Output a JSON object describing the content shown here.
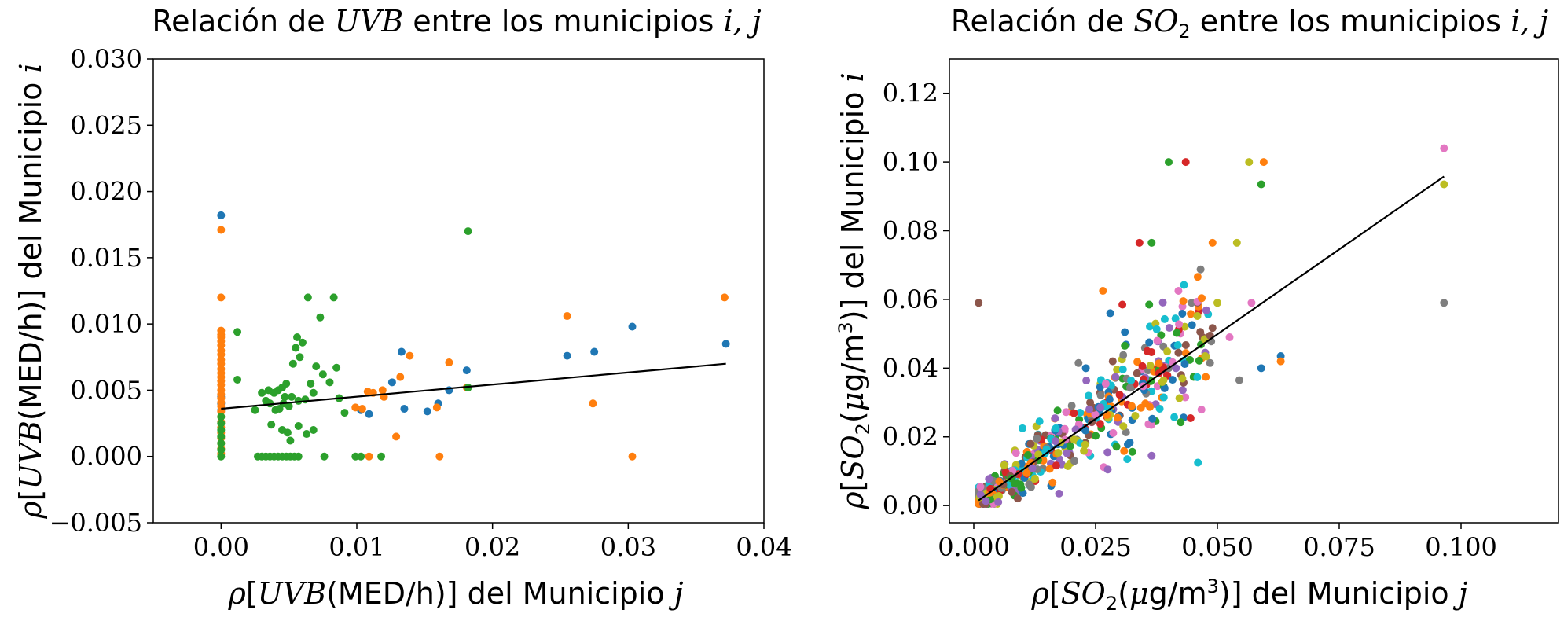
{
  "colors": [
    "#1f77b4",
    "#ff7f0e",
    "#2ca02c",
    "#d62728",
    "#9467bd",
    "#8c564b",
    "#e377c2",
    "#7f7f7f",
    "#bcbd22",
    "#17becf"
  ],
  "chart_data": [
    {
      "type": "scatter",
      "title": "Relación de UVB entre los municipios i, j",
      "xlabel": "ρ[UVB(MED/h)] del Municipio j",
      "ylabel": "ρ[UVB(MED/h)] del Municipio i",
      "xlim": [
        -0.005,
        0.04
      ],
      "ylim": [
        -0.005,
        0.03
      ],
      "xticks": [
        0.0,
        0.01,
        0.02,
        0.03,
        0.04
      ],
      "xtick_labels": [
        "0.00",
        "0.01",
        "0.02",
        "0.03",
        "0.04"
      ],
      "yticks": [
        -0.005,
        0.0,
        0.005,
        0.01,
        0.015,
        0.02,
        0.025,
        0.03
      ],
      "ytick_labels": [
        "−0.005",
        "0.000",
        "0.005",
        "0.010",
        "0.015",
        "0.020",
        "0.025",
        "0.030"
      ],
      "grid": false,
      "fit_line": {
        "x": [
          0.0,
          0.0372
        ],
        "y": [
          0.0036,
          0.007
        ]
      },
      "series": [
        {
          "color": "#1f77b4",
          "points": [
            [
              0,
              0.0182
            ],
            [
              0,
              0.0045
            ],
            [
              0,
              0.004
            ],
            [
              0,
              0.0035
            ],
            [
              0.0109,
              0.0032
            ],
            [
              0.0103,
              0.0035
            ],
            [
              0.0126,
              0.0056
            ],
            [
              0.0133,
              0.0079
            ],
            [
              0.0135,
              0.0036
            ],
            [
              0.0152,
              0.0034
            ],
            [
              0.016,
              0.004
            ],
            [
              0.0168,
              0.005
            ],
            [
              0.0181,
              0.0065
            ],
            [
              0.0255,
              0.0076
            ],
            [
              0.0275,
              0.0079
            ],
            [
              0.0303,
              0.0098
            ],
            [
              0.0372,
              0.0085
            ]
          ]
        },
        {
          "color": "#ff7f0e",
          "points": [
            [
              0,
              0.0171
            ],
            [
              0,
              0.012
            ],
            [
              0,
              0.0095
            ],
            [
              0,
              0.0092
            ],
            [
              0,
              0.009
            ],
            [
              0,
              0.0087
            ],
            [
              0,
              0.0084
            ],
            [
              0,
              0.008
            ],
            [
              0,
              0.0077
            ],
            [
              0,
              0.0073
            ],
            [
              0,
              0.007
            ],
            [
              0,
              0.0066
            ],
            [
              0,
              0.0063
            ],
            [
              0,
              0.006
            ],
            [
              0,
              0.0057
            ],
            [
              0,
              0.0054
            ],
            [
              0,
              0.005
            ],
            [
              0,
              0.0047
            ],
            [
              0,
              0.0044
            ],
            [
              0,
              0.0041
            ],
            [
              0,
              0.0038
            ],
            [
              0,
              0.0034
            ],
            [
              0,
              0.003
            ],
            [
              0,
              0.0026
            ],
            [
              0,
              0.0022
            ],
            [
              0,
              0.0018
            ],
            [
              0,
              0.0014
            ],
            [
              0,
              0.001
            ],
            [
              0,
              0.0006
            ],
            [
              0,
              0.0002
            ],
            [
              0.0099,
              0.0037
            ],
            [
              0.0104,
              0.0036
            ],
            [
              0.0108,
              0.0049
            ],
            [
              0.0112,
              0.0048
            ],
            [
              0.0119,
              0.005
            ],
            [
              0.012,
              0.0045
            ],
            [
              0.0129,
              0.0015
            ],
            [
              0.0132,
              0.006
            ],
            [
              0.0139,
              0.0076
            ],
            [
              0.0159,
              0.0037
            ],
            [
              0.0168,
              0.0071
            ],
            [
              0.0181,
              0.0052
            ],
            [
              0.0255,
              0.0106
            ],
            [
              0.0274,
              0.004
            ],
            [
              0.0303,
              0.0
            ],
            [
              0.0371,
              0.012
            ],
            [
              0.0109,
              0.0
            ],
            [
              0.0161,
              0.0
            ]
          ]
        },
        {
          "color": "#2ca02c",
          "points": [
            [
              0,
              0.0
            ],
            [
              0,
              0.0005
            ],
            [
              0,
              0.001
            ],
            [
              0,
              0.0015
            ],
            [
              0,
              0.002
            ],
            [
              0,
              0.0025
            ],
            [
              0,
              0.003
            ],
            [
              0.0012,
              0.0094
            ],
            [
              0.0012,
              0.0058
            ],
            [
              0.0027,
              0.0
            ],
            [
              0.003,
              0.0
            ],
            [
              0.0033,
              0.0
            ],
            [
              0.0036,
              0.0
            ],
            [
              0.0039,
              0.0
            ],
            [
              0.0042,
              0.0
            ],
            [
              0.0045,
              0.0
            ],
            [
              0.0048,
              0.0
            ],
            [
              0.0051,
              0.0
            ],
            [
              0.0054,
              0.0
            ],
            [
              0.0057,
              0.0
            ],
            [
              0.0076,
              0.0
            ],
            [
              0.0099,
              0.0
            ],
            [
              0.0103,
              0.0
            ],
            [
              0.0118,
              0.0
            ],
            [
              0.0025,
              0.0035
            ],
            [
              0.003,
              0.0048
            ],
            [
              0.0033,
              0.0042
            ],
            [
              0.0035,
              0.005
            ],
            [
              0.0036,
              0.004
            ],
            [
              0.0037,
              0.0024
            ],
            [
              0.0039,
              0.0048
            ],
            [
              0.004,
              0.0035
            ],
            [
              0.0042,
              0.005
            ],
            [
              0.0043,
              0.0036
            ],
            [
              0.0045,
              0.0052
            ],
            [
              0.0046,
              0.004
            ],
            [
              0.0047,
              0.0045
            ],
            [
              0.0048,
              0.0055
            ],
            [
              0.005,
              0.0038
            ],
            [
              0.0052,
              0.0045
            ],
            [
              0.0053,
              0.007
            ],
            [
              0.0055,
              0.0082
            ],
            [
              0.0056,
              0.009
            ],
            [
              0.0057,
              0.0042
            ],
            [
              0.0058,
              0.0075
            ],
            [
              0.006,
              0.0086
            ],
            [
              0.0062,
              0.0043
            ],
            [
              0.0064,
              0.012
            ],
            [
              0.0066,
              0.0055
            ],
            [
              0.0068,
              0.0048
            ],
            [
              0.007,
              0.0068
            ],
            [
              0.0073,
              0.0105
            ],
            [
              0.0075,
              0.0062
            ],
            [
              0.008,
              0.0056
            ],
            [
              0.0083,
              0.012
            ],
            [
              0.0085,
              0.0067
            ],
            [
              0.0087,
              0.0044
            ],
            [
              0.0091,
              0.0033
            ],
            [
              0.0045,
              0.002
            ],
            [
              0.0051,
              0.0012
            ],
            [
              0.0057,
              0.0023
            ],
            [
              0.0063,
              0.0017
            ],
            [
              0.0068,
              0.002
            ],
            [
              0.0049,
              0.0018
            ],
            [
              0.0182,
              0.017
            ],
            [
              0.0182,
              0.0052
            ]
          ]
        }
      ]
    },
    {
      "type": "scatter",
      "title": "Relación de SO2 entre los municipios i, j",
      "xlabel": "ρ[SO2(μg/m3)] del Municipio j",
      "ylabel": "ρ[SO2(μg/m3)] del Municipio i",
      "xlim": [
        -0.005,
        0.12
      ],
      "ylim": [
        -0.005,
        0.13
      ],
      "xticks": [
        0.0,
        0.025,
        0.05,
        0.075,
        0.1
      ],
      "xtick_labels": [
        "0.000",
        "0.025",
        "0.050",
        "0.075",
        "0.100"
      ],
      "yticks": [
        0.0,
        0.02,
        0.04,
        0.06,
        0.08,
        0.1,
        0.12
      ],
      "ytick_labels": [
        "0.00",
        "0.02",
        "0.04",
        "0.06",
        "0.08",
        "0.10",
        "0.12"
      ],
      "grid": false,
      "fit_line": {
        "x": [
          0.001,
          0.0965
        ],
        "y": [
          0.0015,
          0.0958
        ]
      },
      "cloud_seed": 7,
      "cloud_count": 480,
      "series": [
        {
          "color": "#1f77b4",
          "points": [
            [
              0.059,
              0.04
            ],
            [
              0.063,
              0.0435
            ],
            [
              0.031,
              0.0505
            ],
            [
              0.028,
              0.056
            ],
            [
              0.036,
              0.0475
            ],
            [
              0.023,
              0.04
            ]
          ]
        },
        {
          "color": "#ff7f0e",
          "points": [
            [
              0.0595,
              0.1
            ],
            [
              0.049,
              0.0765
            ],
            [
              0.0265,
              0.0625
            ],
            [
              0.063,
              0.042
            ],
            [
              0.043,
              0.0595
            ]
          ]
        },
        {
          "color": "#2ca02c",
          "points": [
            [
              0.04,
              0.1
            ],
            [
              0.059,
              0.0935
            ],
            [
              0.0365,
              0.0765
            ],
            [
              0.036,
              0.0585
            ],
            [
              0.031,
              0.0465
            ]
          ]
        },
        {
          "color": "#d62728",
          "points": [
            [
              0.0435,
              0.1
            ],
            [
              0.034,
              0.0765
            ],
            [
              0.0305,
              0.0585
            ],
            [
              0.038,
              0.0385
            ]
          ]
        },
        {
          "color": "#9467bd",
          "points": [
            [
              0.0365,
              0.0145
            ],
            [
              0.0275,
              0.0105
            ],
            [
              0.0475,
              0.0445
            ],
            [
              0.0415,
              0.04
            ],
            [
              0.0175,
              0.0035
            ]
          ]
        },
        {
          "color": "#8c564b",
          "points": [
            [
              0.001,
              0.059
            ],
            [
              0.0485,
              0.0495
            ],
            [
              0.042,
              0.0445
            ],
            [
              0.0335,
              0.0385
            ]
          ]
        },
        {
          "color": "#e377c2",
          "points": [
            [
              0.0965,
              0.104
            ],
            [
              0.057,
              0.059
            ],
            [
              0.0525,
              0.049
            ],
            [
              0.042,
              0.0625
            ]
          ]
        },
        {
          "color": "#7f7f7f",
          "points": [
            [
              0.0965,
              0.059
            ],
            [
              0.0545,
              0.0365
            ],
            [
              0.0485,
              0.0415
            ],
            [
              0.0215,
              0.0415
            ]
          ]
        },
        {
          "color": "#bcbd22",
          "points": [
            [
              0.0565,
              0.1
            ],
            [
              0.0965,
              0.0935
            ],
            [
              0.054,
              0.0765
            ],
            [
              0.05,
              0.059
            ],
            [
              0.0475,
              0.0435
            ]
          ]
        },
        {
          "color": "#17becf",
          "points": [
            [
              0.046,
              0.0125
            ],
            [
              0.0315,
              0.0135
            ],
            [
              0.0135,
              0.0245
            ],
            [
              0.01,
              0.0225
            ]
          ]
        }
      ]
    }
  ]
}
